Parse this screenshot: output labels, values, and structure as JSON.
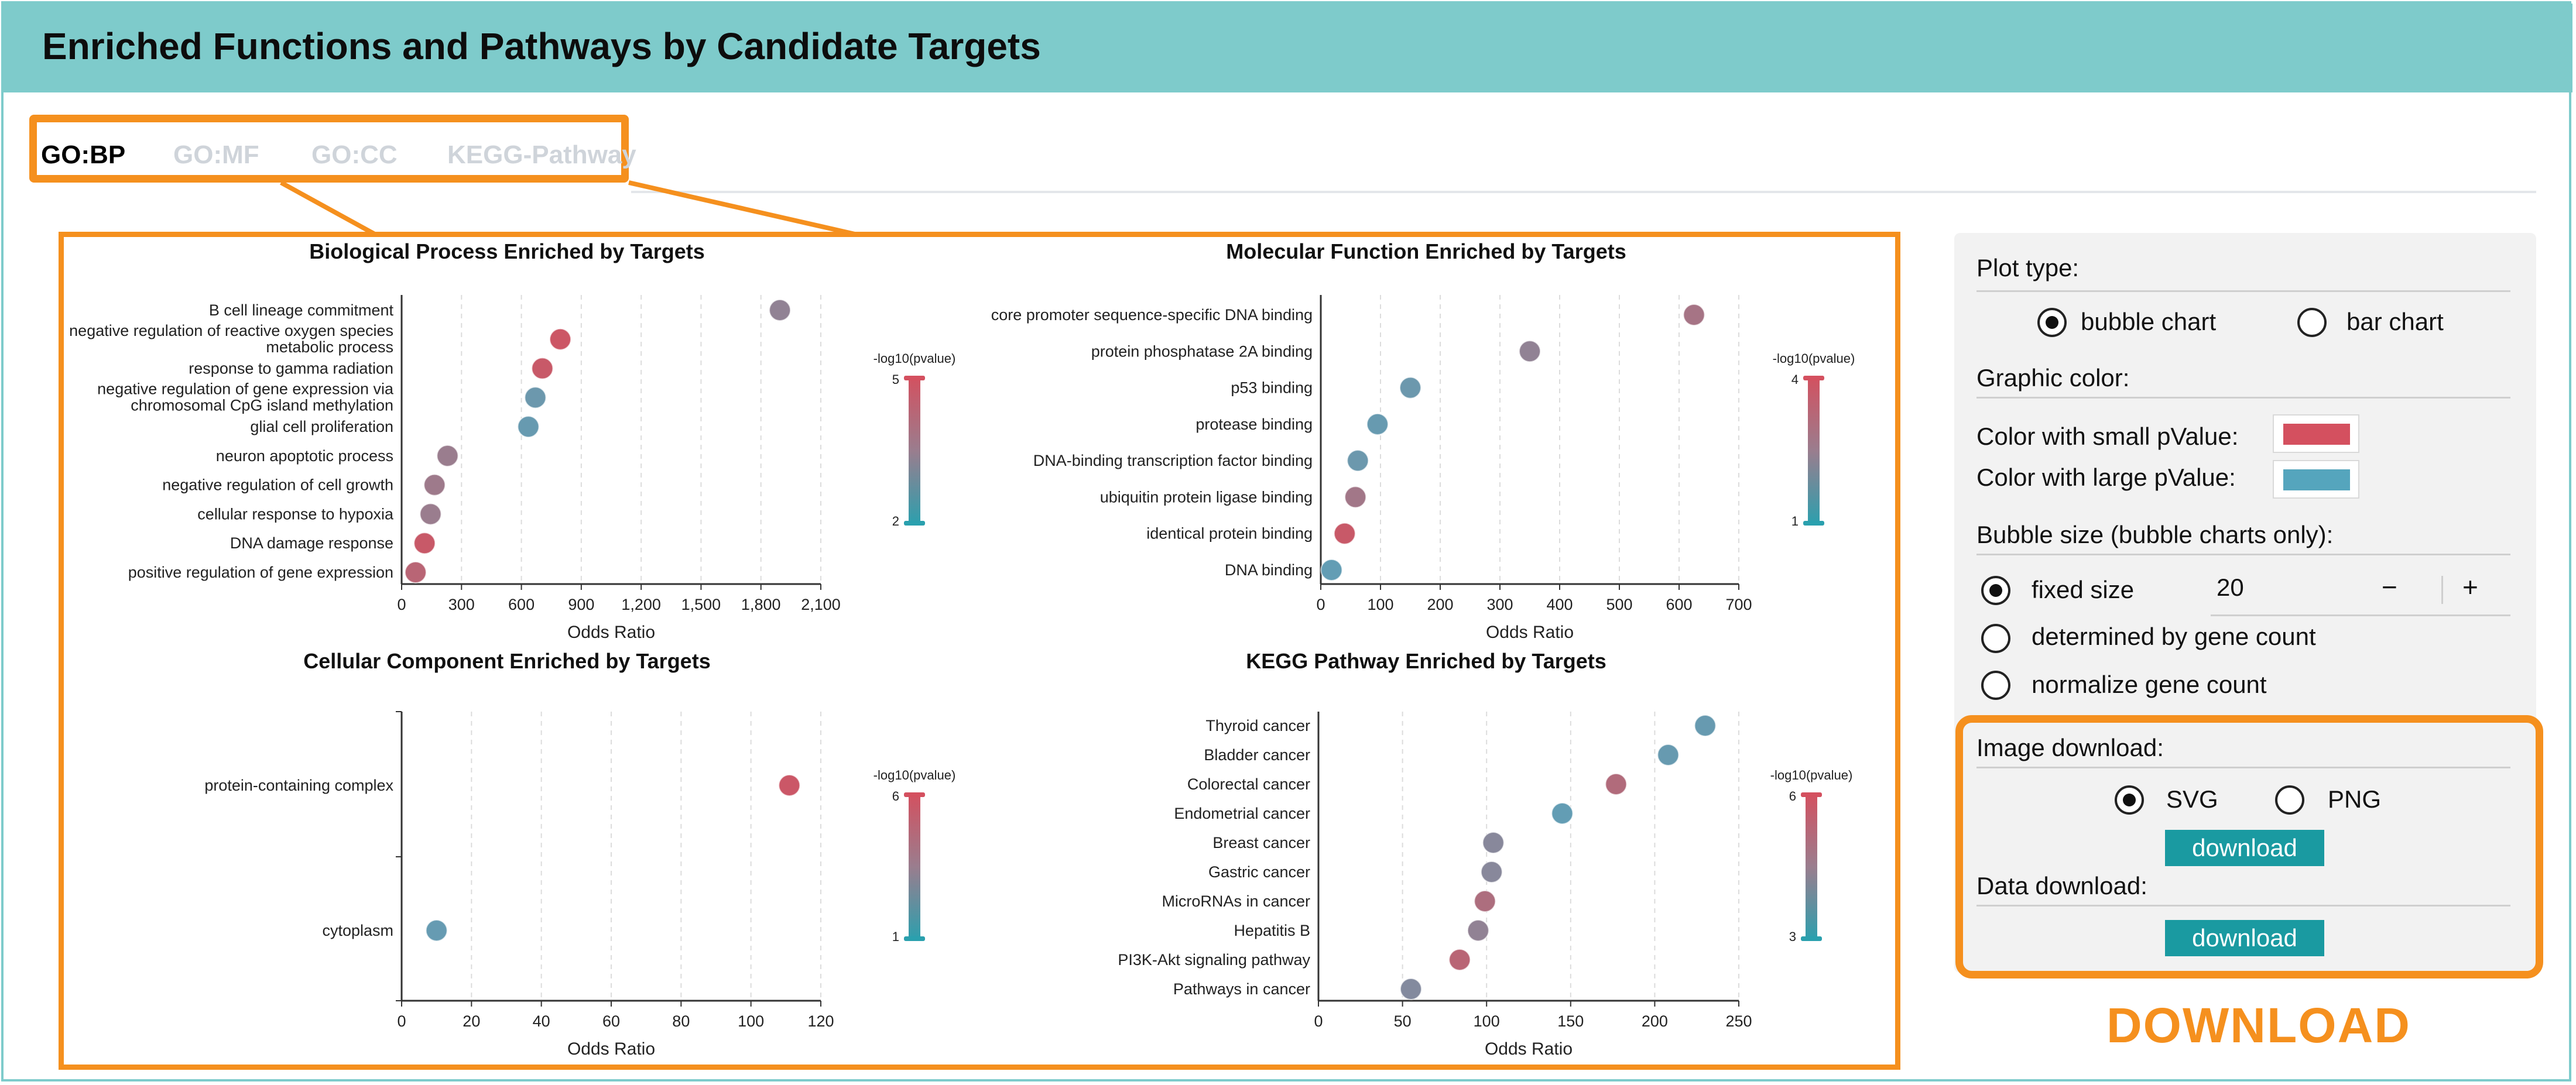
{
  "header": {
    "title": "Enriched Functions and Pathways by Candidate Targets"
  },
  "tabs": [
    {
      "label": "GO:BP",
      "active": true
    },
    {
      "label": "GO:MF",
      "active": false
    },
    {
      "label": "GO:CC",
      "active": false
    },
    {
      "label": "KEGG-Pathway",
      "active": false
    }
  ],
  "colors": {
    "accent_orange": "#f5901e",
    "header_teal": "#7ecbcb",
    "small_pvalue": "#d4505f",
    "large_pvalue": "#55a5bd",
    "button_teal": "#1a9aa1"
  },
  "chart_data": [
    {
      "type": "scatter",
      "title": "Biological Process Enriched by Targets",
      "xlabel": "Odds Ratio",
      "ylabel": "",
      "xlim": [
        0,
        2100
      ],
      "xticks": [
        0,
        300,
        600,
        900,
        1200,
        1500,
        1800,
        2100
      ],
      "xtick_labels": [
        "0",
        "300",
        "600",
        "900",
        "1,200",
        "1,500",
        "1,800",
        "2,100"
      ],
      "categories": [
        "B cell lineage commitment",
        "negative regulation of reactive oxygen species metabolic process",
        "response to gamma radiation",
        "negative regulation of gene expression via chromosomal CpG island methylation",
        "glial cell proliferation",
        "neuron apoptotic process",
        "negative regulation of cell growth",
        "cellular response to hypoxia",
        "DNA damage response",
        "positive regulation of gene expression"
      ],
      "category_lines": [
        [
          "B cell lineage commitment"
        ],
        [
          "negative regulation of reactive oxygen species",
          "metabolic process"
        ],
        [
          "response to gamma radiation"
        ],
        [
          "negative regulation of gene expression via",
          "chromosomal CpG island methylation"
        ],
        [
          "glial cell proliferation"
        ],
        [
          "neuron apoptotic process"
        ],
        [
          "negative regulation of cell growth"
        ],
        [
          "cellular response to hypoxia"
        ],
        [
          "DNA damage response"
        ],
        [
          "positive regulation of gene expression"
        ]
      ],
      "x": [
        1895,
        795,
        705,
        670,
        635,
        230,
        165,
        145,
        115,
        70
      ],
      "neg_log10_pvalue": [
        3.3,
        4.8,
        4.7,
        2.5,
        2.4,
        3.5,
        3.6,
        3.5,
        4.7,
        4.3
      ],
      "colorbar": {
        "title": "-log10(pvalue)",
        "min": 2,
        "max": 5,
        "min_label": "2",
        "max_label": "5"
      },
      "grid": true,
      "legend": "right"
    },
    {
      "type": "scatter",
      "title": "Molecular Function Enriched by Targets",
      "xlabel": "Odds Ratio",
      "ylabel": "",
      "xlim": [
        0,
        700
      ],
      "xticks": [
        0,
        100,
        200,
        300,
        400,
        500,
        600,
        700
      ],
      "xtick_labels": [
        "0",
        "100",
        "200",
        "300",
        "400",
        "500",
        "600",
        "700"
      ],
      "categories": [
        "core promoter sequence-specific DNA binding",
        "protein phosphatase 2A binding",
        "p53 binding",
        "protease binding",
        "DNA-binding transcription factor binding",
        "ubiquitin protein ligase binding",
        "identical protein binding",
        "DNA binding"
      ],
      "category_lines": [
        [
          "core promoter sequence-specific DNA binding"
        ],
        [
          "protein phosphatase 2A binding"
        ],
        [
          "p53 binding"
        ],
        [
          "protease binding"
        ],
        [
          "DNA-binding transcription factor binding"
        ],
        [
          "ubiquitin protein ligase binding"
        ],
        [
          "identical protein binding"
        ],
        [
          "DNA binding"
        ]
      ],
      "x": [
        625,
        350,
        150,
        95,
        62,
        58,
        40,
        18
      ],
      "neg_log10_pvalue": [
        2.8,
        2.3,
        1.5,
        1.4,
        1.5,
        2.7,
        3.7,
        1.3
      ],
      "colorbar": {
        "title": "-log10(pvalue)",
        "min": 1,
        "max": 4,
        "min_label": "1",
        "max_label": "4"
      },
      "grid": true,
      "legend": "right"
    },
    {
      "type": "scatter",
      "title": "Cellular Component Enriched by Targets",
      "xlabel": "Odds Ratio",
      "ylabel": "",
      "xlim": [
        0,
        120
      ],
      "xticks": [
        0,
        20,
        40,
        60,
        80,
        100,
        120
      ],
      "xtick_labels": [
        "0",
        "20",
        "40",
        "60",
        "80",
        "100",
        "120"
      ],
      "categories": [
        "protein-containing complex",
        "cytoplasm"
      ],
      "category_lines": [
        [
          "protein-containing complex"
        ],
        [
          "cytoplasm"
        ]
      ],
      "x": [
        111,
        10
      ],
      "neg_log10_pvalue": [
        5.6,
        1.6
      ],
      "colorbar": {
        "title": "-log10(pvalue)",
        "min": 1,
        "max": 6,
        "min_label": "1",
        "max_label": "6"
      },
      "grid": true,
      "legend": "right"
    },
    {
      "type": "scatter",
      "title": "KEGG Pathway Enriched by Targets",
      "xlabel": "Odds Ratio",
      "ylabel": "",
      "xlim": [
        0,
        250
      ],
      "xticks": [
        0,
        50,
        100,
        150,
        200,
        250
      ],
      "xtick_labels": [
        "0",
        "50",
        "100",
        "150",
        "200",
        "250"
      ],
      "categories": [
        "Thyroid cancer",
        "Bladder cancer",
        "Colorectal cancer",
        "Endometrial cancer",
        "Breast cancer",
        "Gastric cancer",
        "MicroRNAs in cancer",
        "Hepatitis B",
        "PI3K-Akt signaling pathway",
        "Pathways in cancer"
      ],
      "category_lines": [
        [
          "Thyroid cancer"
        ],
        [
          "Bladder cancer"
        ],
        [
          "Colorectal cancer"
        ],
        [
          "Endometrial cancer"
        ],
        [
          "Breast cancer"
        ],
        [
          "Gastric cancer"
        ],
        [
          "MicroRNAs in cancer"
        ],
        [
          "Hepatitis B"
        ],
        [
          "PI3K-Akt signaling pathway"
        ],
        [
          "Pathways in cancer"
        ]
      ],
      "x": [
        230,
        208,
        177,
        145,
        104,
        103,
        99,
        95,
        84,
        55
      ],
      "neg_log10_pvalue": [
        3.4,
        3.4,
        5.1,
        3.3,
        4.1,
        4.1,
        5.0,
        4.3,
        5.3,
        4.0
      ],
      "colorbar": {
        "title": "-log10(pvalue)",
        "min": 3,
        "max": 6,
        "min_label": "3",
        "max_label": "6"
      },
      "grid": true,
      "legend": "right"
    }
  ],
  "panel": {
    "plot_type_label": "Plot type:",
    "plot_type_options": [
      {
        "label": "bubble chart",
        "selected": true
      },
      {
        "label": "bar chart",
        "selected": false
      }
    ],
    "graphic_color_label": "Graphic color:",
    "small_pvalue_label": "Color with small pValue:",
    "large_pvalue_label": "Color with large pValue:",
    "bubble_size_label": "Bubble size (bubble charts only):",
    "bubble_size_options": [
      {
        "label": "fixed size",
        "selected": true
      },
      {
        "label": "determined by gene count",
        "selected": false
      },
      {
        "label": "normalize gene count",
        "selected": false
      }
    ],
    "fixed_size_value": "20",
    "minus": "−",
    "plus": "+",
    "image_download_label": "Image download:",
    "image_format_options": [
      {
        "label": "SVG",
        "selected": true
      },
      {
        "label": "PNG",
        "selected": false
      }
    ],
    "download_button": "download",
    "data_download_label": "Data download:",
    "data_download_button": "download"
  },
  "download_caption": "DOWNLOAD"
}
